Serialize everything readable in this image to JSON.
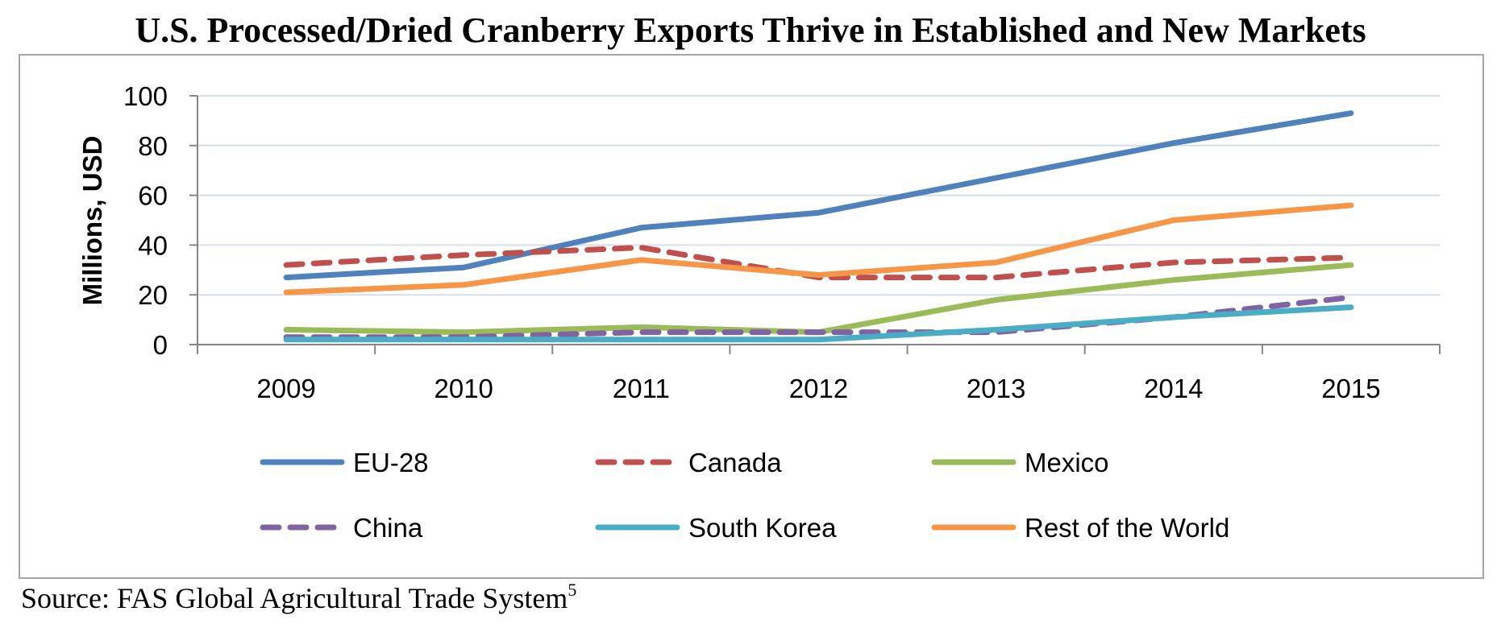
{
  "title": "U.S. Processed/Dried Cranberry Exports Thrive in Established and New Markets",
  "source": {
    "text": "Source: FAS Global Agricultural Trade System",
    "superscript": "5"
  },
  "chart_data": {
    "type": "line",
    "ylabel": "Millions, USD",
    "ylim": [
      0,
      100
    ],
    "yticks": [
      "0",
      "20",
      "40",
      "60",
      "80",
      "100"
    ],
    "categories": [
      "2009",
      "2010",
      "2011",
      "2012",
      "2013",
      "2014",
      "2015"
    ],
    "grid": true,
    "legend_placement": "bottom",
    "series": [
      {
        "name": "EU-28",
        "color": "#4f81bd",
        "dashed": false,
        "values": [
          27,
          31,
          47,
          53,
          67,
          81,
          93
        ]
      },
      {
        "name": "Canada",
        "color": "#c0504d",
        "dashed": true,
        "values": [
          32,
          36,
          39,
          27,
          27,
          33,
          35
        ]
      },
      {
        "name": "Mexico",
        "color": "#9bbb59",
        "dashed": false,
        "values": [
          6,
          5,
          7,
          5,
          18,
          26,
          32
        ]
      },
      {
        "name": "China",
        "color": "#8064a2",
        "dashed": true,
        "values": [
          3,
          3,
          5,
          5,
          5,
          11,
          19
        ]
      },
      {
        "name": "South Korea",
        "color": "#4bacc6",
        "dashed": false,
        "values": [
          2,
          2,
          2,
          2,
          6,
          11,
          15
        ]
      },
      {
        "name": "Rest of the World",
        "color": "#f79646",
        "dashed": false,
        "values": [
          21,
          24,
          34,
          28,
          33,
          50,
          56
        ]
      }
    ]
  }
}
